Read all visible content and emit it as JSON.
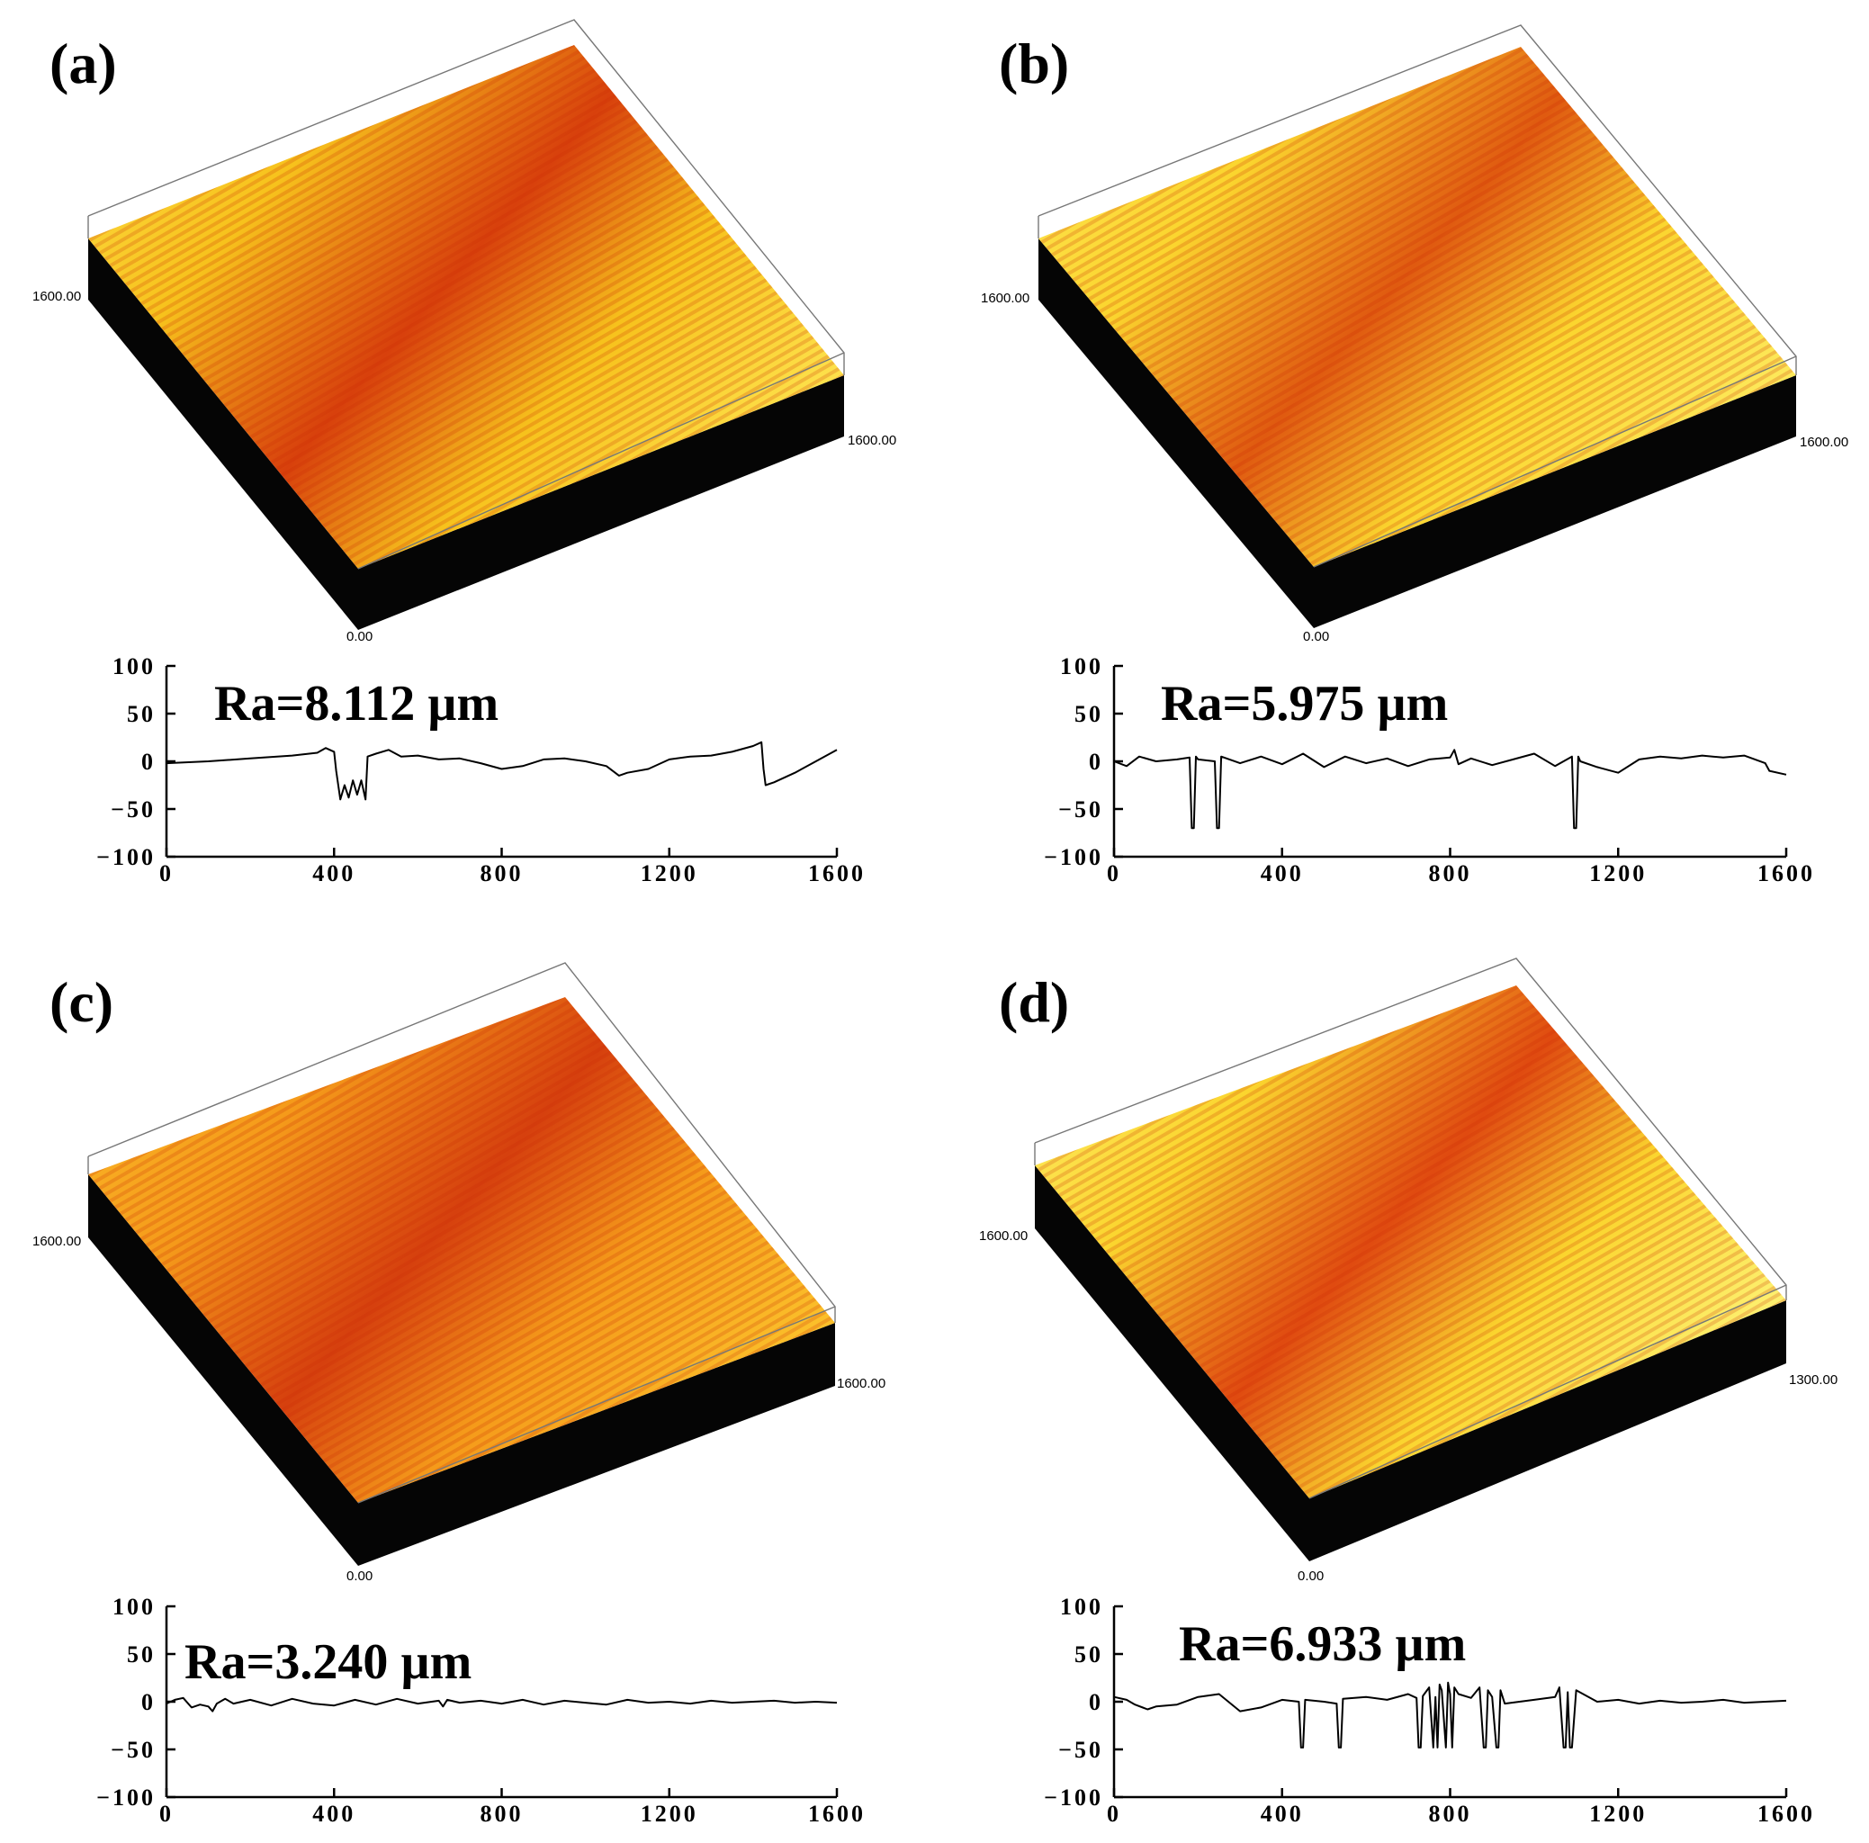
{
  "chart_data": [
    {
      "type": "line",
      "panel": "(a)",
      "annotation": "Ra=8.112 µm",
      "surface_labels": {
        "y_end": "1600.00",
        "x_end": "1600.00",
        "origin": "0.00"
      },
      "xlim": [
        0,
        1600
      ],
      "ylim": [
        -100,
        100
      ],
      "xticks": [
        0,
        400,
        800,
        1200,
        1600
      ],
      "yticks": [
        100,
        50,
        0,
        -50,
        -100
      ],
      "surface_colors": {
        "base": "#f7c21c",
        "light": "#fde04a",
        "dark": "#d8400c"
      },
      "x": [
        0,
        100,
        200,
        300,
        360,
        380,
        400,
        405,
        415,
        425,
        435,
        445,
        455,
        465,
        475,
        480,
        500,
        530,
        560,
        600,
        650,
        700,
        750,
        800,
        850,
        900,
        950,
        1000,
        1050,
        1080,
        1100,
        1150,
        1200,
        1250,
        1300,
        1350,
        1400,
        1420,
        1425,
        1430,
        1450,
        1500,
        1550,
        1600
      ],
      "y": [
        -2,
        0,
        3,
        6,
        9,
        14,
        10,
        -10,
        -40,
        -25,
        -38,
        -20,
        -35,
        -20,
        -40,
        5,
        8,
        12,
        5,
        6,
        2,
        3,
        -2,
        -8,
        -5,
        2,
        3,
        0,
        -5,
        -15,
        -12,
        -8,
        2,
        5,
        6,
        10,
        16,
        20,
        -8,
        -25,
        -22,
        -12,
        0,
        12
      ]
    },
    {
      "type": "line",
      "panel": "(b)",
      "annotation": "Ra=5.975 µm",
      "surface_labels": {
        "y_end": "1600.00",
        "x_end": "1600.00",
        "origin": "0.00"
      },
      "xlim": [
        0,
        1600
      ],
      "ylim": [
        -100,
        100
      ],
      "xticks": [
        0,
        400,
        800,
        1200,
        1600
      ],
      "yticks": [
        100,
        50,
        0,
        -50,
        -100
      ],
      "surface_colors": {
        "base": "#fbd52e",
        "light": "#fde85a",
        "dark": "#e05a10"
      },
      "x": [
        0,
        30,
        60,
        100,
        150,
        180,
        185,
        190,
        195,
        200,
        240,
        245,
        250,
        255,
        300,
        350,
        400,
        450,
        500,
        550,
        600,
        650,
        700,
        750,
        800,
        810,
        820,
        850,
        900,
        950,
        1000,
        1050,
        1090,
        1095,
        1100,
        1105,
        1110,
        1150,
        1200,
        1250,
        1300,
        1350,
        1400,
        1450,
        1500,
        1550,
        1560,
        1600
      ],
      "y": [
        0,
        -5,
        5,
        0,
        2,
        4,
        -70,
        -70,
        5,
        2,
        0,
        -70,
        -70,
        5,
        -2,
        5,
        -3,
        8,
        -6,
        5,
        -2,
        3,
        -5,
        2,
        4,
        12,
        -3,
        3,
        -4,
        2,
        8,
        -5,
        5,
        -70,
        -70,
        5,
        0,
        -6,
        -12,
        2,
        5,
        3,
        6,
        4,
        6,
        -2,
        -10,
        -14
      ]
    },
    {
      "type": "line",
      "panel": "(c)",
      "annotation": "Ra=3.240 µm",
      "surface_labels": {
        "y_end": "1600.00",
        "x_end": "1600.00",
        "origin": "0.00"
      },
      "xlim": [
        0,
        1600
      ],
      "ylim": [
        -100,
        100
      ],
      "xticks": [
        0,
        400,
        800,
        1200,
        1600
      ],
      "yticks": [
        100,
        50,
        0,
        -50,
        -100
      ],
      "surface_colors": {
        "base": "#f59a1a",
        "light": "#fbbf2a",
        "dark": "#d6400e"
      },
      "x": [
        0,
        20,
        40,
        60,
        80,
        100,
        110,
        120,
        140,
        160,
        200,
        250,
        300,
        350,
        400,
        450,
        500,
        550,
        600,
        650,
        660,
        670,
        700,
        750,
        800,
        850,
        900,
        950,
        1000,
        1050,
        1100,
        1150,
        1200,
        1250,
        1300,
        1350,
        1400,
        1450,
        1500,
        1550,
        1600
      ],
      "y": [
        -2,
        2,
        4,
        -6,
        -3,
        -5,
        -10,
        -2,
        3,
        -2,
        2,
        -4,
        3,
        -2,
        -4,
        2,
        -3,
        3,
        -2,
        1,
        -5,
        2,
        -1,
        1,
        -2,
        2,
        -3,
        1,
        -1,
        -3,
        2,
        -1,
        0,
        -2,
        1,
        -1,
        0,
        1,
        -1,
        0,
        -1
      ]
    },
    {
      "type": "line",
      "panel": "(d)",
      "annotation": "Ra=6.933 µm",
      "surface_labels": {
        "y_end": "1600.00",
        "x_end": "1300.00",
        "origin": "0.00"
      },
      "xlim": [
        0,
        1600
      ],
      "ylim": [
        -100,
        100
      ],
      "xticks": [
        0,
        400,
        800,
        1200,
        1600
      ],
      "yticks": [
        100,
        50,
        0,
        -50,
        -100
      ],
      "surface_colors": {
        "base": "#fbd52e",
        "light": "#fdf070",
        "dark": "#e04a10"
      },
      "x": [
        0,
        30,
        50,
        80,
        100,
        150,
        200,
        250,
        300,
        350,
        400,
        440,
        445,
        450,
        455,
        500,
        530,
        535,
        540,
        545,
        600,
        650,
        700,
        720,
        725,
        730,
        735,
        750,
        760,
        765,
        770,
        775,
        780,
        790,
        795,
        800,
        805,
        810,
        820,
        850,
        870,
        880,
        885,
        890,
        900,
        910,
        915,
        920,
        930,
        1000,
        1050,
        1060,
        1070,
        1075,
        1080,
        1085,
        1090,
        1100,
        1150,
        1200,
        1250,
        1300,
        1350,
        1400,
        1450,
        1500,
        1550,
        1600
      ],
      "y": [
        5,
        2,
        -3,
        -8,
        -5,
        -3,
        5,
        8,
        -10,
        -6,
        2,
        0,
        -48,
        -48,
        2,
        0,
        -2,
        -48,
        -48,
        3,
        5,
        2,
        8,
        4,
        -48,
        -48,
        6,
        15,
        -48,
        5,
        -48,
        18,
        12,
        -48,
        20,
        8,
        -48,
        15,
        8,
        4,
        15,
        -48,
        -48,
        12,
        5,
        -48,
        -48,
        12,
        -2,
        2,
        5,
        15,
        -48,
        -48,
        10,
        -48,
        -48,
        12,
        0,
        2,
        -2,
        1,
        -1,
        0,
        2,
        -1,
        0,
        1
      ]
    }
  ]
}
